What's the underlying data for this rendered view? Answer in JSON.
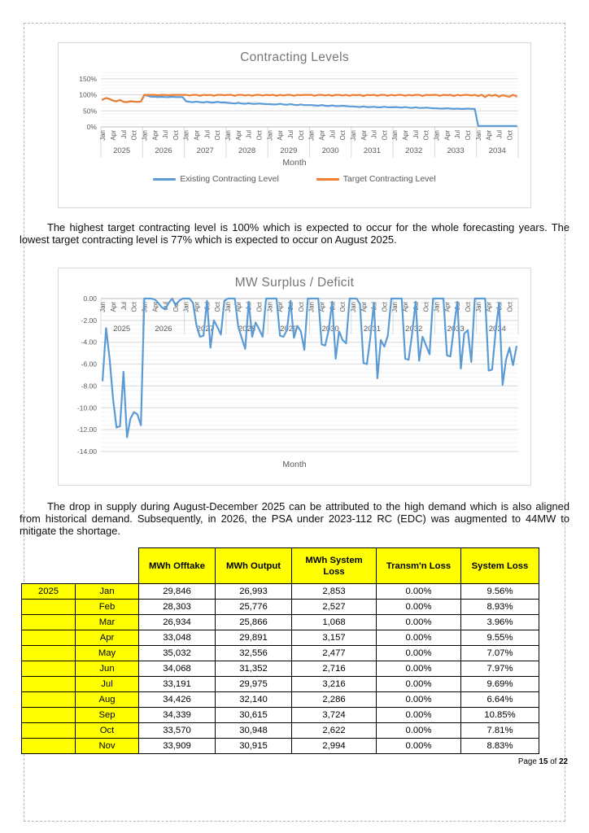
{
  "paragraphs": {
    "p1": "The highest target contracting level is 100% which is expected to occur for the whole forecasting years. The lowest target contracting level is 77% which is expected to occur on August 2025.",
    "p2": "The drop in supply during August-December 2025 can be attributed to the high demand which is also aligned from historical demand. Subsequently, in 2026, the PSA under 2023-112 RC (EDC) was augmented to 44MW to mitigate the shortage."
  },
  "chart_data": [
    {
      "type": "line",
      "title": "Contracting Levels",
      "xlabel": "Month",
      "ylabel": "",
      "grid": true,
      "legend_position": "bottom",
      "years": [
        "2025",
        "2026",
        "2027",
        "2028",
        "2029",
        "2030",
        "2031",
        "2032",
        "2033",
        "2034"
      ],
      "month_ticks": [
        "Jan",
        "Apr",
        "Jul",
        "Oct"
      ],
      "y_ticks": [
        "0%",
        "50%",
        "100%",
        "150%"
      ],
      "ylim_percent": [
        0,
        150
      ],
      "series": [
        {
          "name": "Existing Contracting Level",
          "color": "#5B9BD5",
          "values": [
            85,
            90,
            87,
            82,
            80,
            84,
            78,
            77,
            80,
            79,
            78,
            79,
            100,
            97,
            94,
            94,
            93,
            94,
            93,
            93,
            94,
            93,
            93,
            93,
            80,
            78,
            77,
            79,
            77,
            76,
            78,
            76,
            76,
            78,
            76,
            76,
            75,
            74,
            73,
            75,
            73,
            72,
            74,
            72,
            72,
            73,
            72,
            71,
            71,
            70,
            70,
            72,
            70,
            69,
            71,
            69,
            68,
            70,
            68,
            68,
            68,
            67,
            66,
            68,
            66,
            65,
            67,
            65,
            65,
            66,
            65,
            64,
            64,
            63,
            62,
            64,
            62,
            62,
            63,
            61,
            61,
            63,
            61,
            61,
            62,
            61,
            60,
            62,
            60,
            59,
            61,
            59,
            59,
            60,
            59,
            58,
            58,
            57,
            57,
            58,
            57,
            56,
            57,
            56,
            56,
            57,
            56,
            56,
            3,
            3,
            3,
            3,
            3,
            3,
            3,
            3,
            3,
            3,
            3,
            3
          ]
        },
        {
          "name": "Target Contracting Level",
          "color": "#ED7D31",
          "values": [
            85,
            90,
            87,
            82,
            80,
            84,
            78,
            77,
            80,
            79,
            78,
            79,
            100,
            100,
            100,
            100,
            99,
            100,
            100,
            99,
            100,
            100,
            100,
            100,
            100,
            98,
            100,
            100,
            97,
            100,
            99,
            100,
            97,
            100,
            100,
            99,
            100,
            100,
            97,
            100,
            100,
            98,
            100,
            97,
            100,
            100,
            98,
            100,
            99,
            100,
            97,
            100,
            98,
            100,
            100,
            97,
            100,
            99,
            100,
            100,
            100,
            97,
            100,
            100,
            98,
            100,
            97,
            100,
            100,
            98,
            100,
            97,
            100,
            99,
            100,
            96,
            100,
            99,
            100,
            97,
            100,
            100,
            97,
            100,
            98,
            100,
            100,
            97,
            100,
            98,
            100,
            100,
            96,
            100,
            99,
            100,
            100,
            97,
            100,
            99,
            100,
            96,
            100,
            98,
            100,
            100,
            98,
            100,
            96,
            100,
            93,
            100,
            97,
            100,
            94,
            99,
            96,
            94,
            100,
            95
          ]
        }
      ]
    },
    {
      "type": "line",
      "title": "MW Surplus / Deficit",
      "xlabel": "Month",
      "ylabel": "",
      "grid": true,
      "legend_position": "none",
      "years": [
        "2025",
        "2026",
        "2027",
        "2028",
        "2029",
        "2030",
        "2031",
        "2032",
        "2033",
        "2034"
      ],
      "month_ticks": [
        "Jan",
        "Apr",
        "Jul",
        "Oct"
      ],
      "y_ticks": [
        "0.00",
        "-2.00",
        "-4.00",
        "-6.00",
        "-8.00",
        "-10.00",
        "-12.00",
        "-14.00"
      ],
      "ylim": [
        -14,
        0
      ],
      "series": [
        {
          "name": "MW Surplus / Deficit",
          "color": "#5B9BD5",
          "values": [
            -7.5,
            -2.7,
            -5.5,
            -9.2,
            -11.8,
            -11.7,
            -6.7,
            -12.7,
            -11.0,
            -10.4,
            -10.6,
            -11.6,
            0,
            0,
            0,
            -0.1,
            -0.4,
            -0.8,
            -1.0,
            -0.4,
            0,
            -0.6,
            -0.2,
            0,
            0,
            0,
            -0.4,
            -2.5,
            -3.5,
            -3.4,
            -0.2,
            -4.5,
            -2.0,
            -2.6,
            -3.3,
            -0.2,
            0,
            0,
            0,
            -2.6,
            -3.6,
            -4.6,
            -0.3,
            -3.5,
            -2.2,
            -2.8,
            -3.5,
            0,
            0,
            0,
            0,
            -3.4,
            -3.5,
            -2.9,
            -0.2,
            -3.6,
            -2.5,
            -3.0,
            -4.7,
            0,
            0,
            0,
            0,
            -4.2,
            -4.3,
            -2.9,
            -0.3,
            -5.5,
            -3.0,
            -3.8,
            -4.1,
            0,
            0,
            0,
            -0.5,
            -5.9,
            -6.0,
            -3.5,
            -0.4,
            -7.3,
            -3.8,
            -4.4,
            -3.4,
            0,
            0,
            0,
            0,
            -5.5,
            -5.6,
            -3.2,
            -0.3,
            -5.7,
            -3.5,
            -4.3,
            -5.1,
            0,
            0,
            0,
            0,
            -5.2,
            -5.3,
            -2.7,
            -0.3,
            -6.4,
            -3.2,
            -2.9,
            -5.8,
            0,
            0,
            0,
            0,
            -6.6,
            -6.5,
            -3.0,
            -0.4,
            -7.9,
            -5.6,
            -4.5,
            -6.1,
            -4.4
          ]
        }
      ]
    }
  ],
  "table": {
    "columns": [
      "MWh Offtake",
      "MWh Output",
      "MWh System Loss",
      "Transm'n Loss",
      "System Loss"
    ],
    "rows": [
      [
        "2025",
        "Jan",
        "29,846",
        "26,993",
        "2,853",
        "0.00%",
        "9.56%"
      ],
      [
        "",
        "Feb",
        "28,303",
        "25,776",
        "2,527",
        "0.00%",
        "8.93%"
      ],
      [
        "",
        "Mar",
        "26,934",
        "25,866",
        "1,068",
        "0.00%",
        "3.96%"
      ],
      [
        "",
        "Apr",
        "33,048",
        "29,891",
        "3,157",
        "0.00%",
        "9.55%"
      ],
      [
        "",
        "May",
        "35,032",
        "32,556",
        "2,477",
        "0.00%",
        "7.07%"
      ],
      [
        "",
        "Jun",
        "34,068",
        "31,352",
        "2,716",
        "0.00%",
        "7.97%"
      ],
      [
        "",
        "Jul",
        "33,191",
        "29,975",
        "3,216",
        "0.00%",
        "9.69%"
      ],
      [
        "",
        "Aug",
        "34,426",
        "32,140",
        "2,286",
        "0.00%",
        "6.64%"
      ],
      [
        "",
        "Sep",
        "34,339",
        "30,615",
        "3,724",
        "0.00%",
        "10.85%"
      ],
      [
        "",
        "Oct",
        "33,570",
        "30,948",
        "2,622",
        "0.00%",
        "7.81%"
      ],
      [
        "",
        "Nov",
        "33,909",
        "30,915",
        "2,994",
        "0.00%",
        "8.83%"
      ]
    ],
    "header_bg": "#FFFF00"
  },
  "footer": {
    "prefix": "Page",
    "current": "15",
    "of": "of",
    "total": "22"
  }
}
